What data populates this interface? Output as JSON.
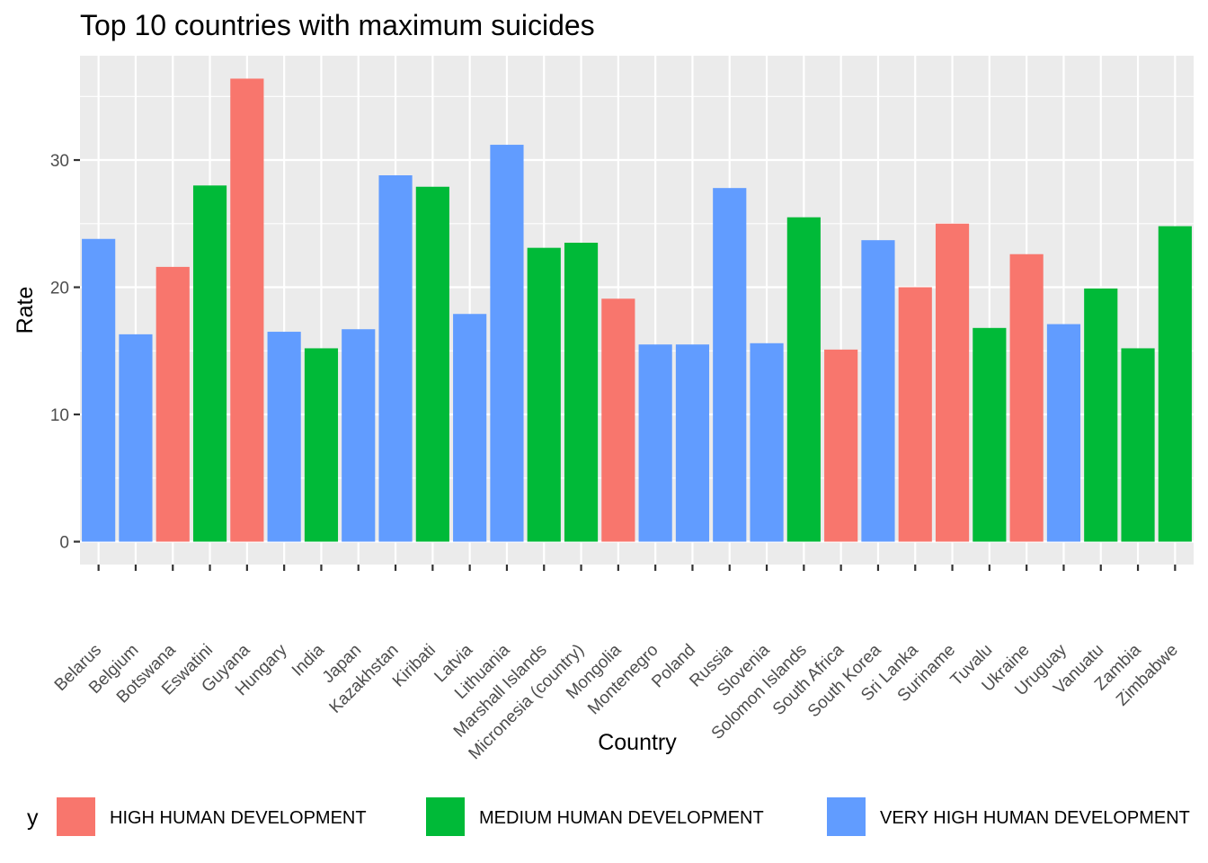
{
  "colors": {
    "panel_bg": "#EBEBEB",
    "grid": "#FFFFFF",
    "tick": "#333333"
  },
  "chart_data": {
    "type": "bar",
    "title": "Top 10 countries with maximum suicides",
    "xlabel": "Country",
    "ylabel": "Rate",
    "ylim": [
      -1.8,
      38.2
    ],
    "yticks": [
      0,
      10,
      20,
      30
    ],
    "grid": true,
    "categories": [
      "Belarus",
      "Belgium",
      "Botswana",
      "Eswatini",
      "Guyana",
      "Hungary",
      "India",
      "Japan",
      "Kazakhstan",
      "Kiribati",
      "Latvia",
      "Lithuania",
      "Marshall Islands",
      "Micronesia (country)",
      "Mongolia",
      "Montenegro",
      "Poland",
      "Russia",
      "Slovenia",
      "Solomon Islands",
      "South Africa",
      "South Korea",
      "Sri Lanka",
      "Suriname",
      "Tuvalu",
      "Ukraine",
      "Uruguay",
      "Vanuatu",
      "Zambia",
      "Zimbabwe"
    ],
    "values": [
      23.8,
      16.3,
      21.6,
      28.0,
      36.4,
      16.5,
      15.2,
      16.7,
      28.8,
      27.9,
      17.9,
      31.2,
      23.1,
      23.5,
      19.1,
      15.5,
      15.5,
      27.8,
      15.6,
      25.5,
      15.1,
      23.7,
      20.0,
      25.0,
      16.8,
      22.6,
      17.1,
      19.9,
      15.2,
      24.8
    ],
    "groups": [
      "VERY HIGH HUMAN DEVELOPMENT",
      "VERY HIGH HUMAN DEVELOPMENT",
      "HIGH HUMAN DEVELOPMENT",
      "MEDIUM HUMAN DEVELOPMENT",
      "HIGH HUMAN DEVELOPMENT",
      "VERY HIGH HUMAN DEVELOPMENT",
      "MEDIUM HUMAN DEVELOPMENT",
      "VERY HIGH HUMAN DEVELOPMENT",
      "VERY HIGH HUMAN DEVELOPMENT",
      "MEDIUM HUMAN DEVELOPMENT",
      "VERY HIGH HUMAN DEVELOPMENT",
      "VERY HIGH HUMAN DEVELOPMENT",
      "MEDIUM HUMAN DEVELOPMENT",
      "MEDIUM HUMAN DEVELOPMENT",
      "HIGH HUMAN DEVELOPMENT",
      "VERY HIGH HUMAN DEVELOPMENT",
      "VERY HIGH HUMAN DEVELOPMENT",
      "VERY HIGH HUMAN DEVELOPMENT",
      "VERY HIGH HUMAN DEVELOPMENT",
      "MEDIUM HUMAN DEVELOPMENT",
      "HIGH HUMAN DEVELOPMENT",
      "VERY HIGH HUMAN DEVELOPMENT",
      "HIGH HUMAN DEVELOPMENT",
      "HIGH HUMAN DEVELOPMENT",
      "MEDIUM HUMAN DEVELOPMENT",
      "HIGH HUMAN DEVELOPMENT",
      "VERY HIGH HUMAN DEVELOPMENT",
      "MEDIUM HUMAN DEVELOPMENT",
      "MEDIUM HUMAN DEVELOPMENT",
      "MEDIUM HUMAN DEVELOPMENT"
    ],
    "legend": {
      "title": "y",
      "position": "bottom",
      "entries": [
        {
          "label": "HIGH HUMAN DEVELOPMENT",
          "color": "#F8766D"
        },
        {
          "label": "MEDIUM HUMAN DEVELOPMENT",
          "color": "#00BA38"
        },
        {
          "label": "VERY HIGH HUMAN DEVELOPMENT",
          "color": "#619CFF"
        }
      ]
    }
  }
}
